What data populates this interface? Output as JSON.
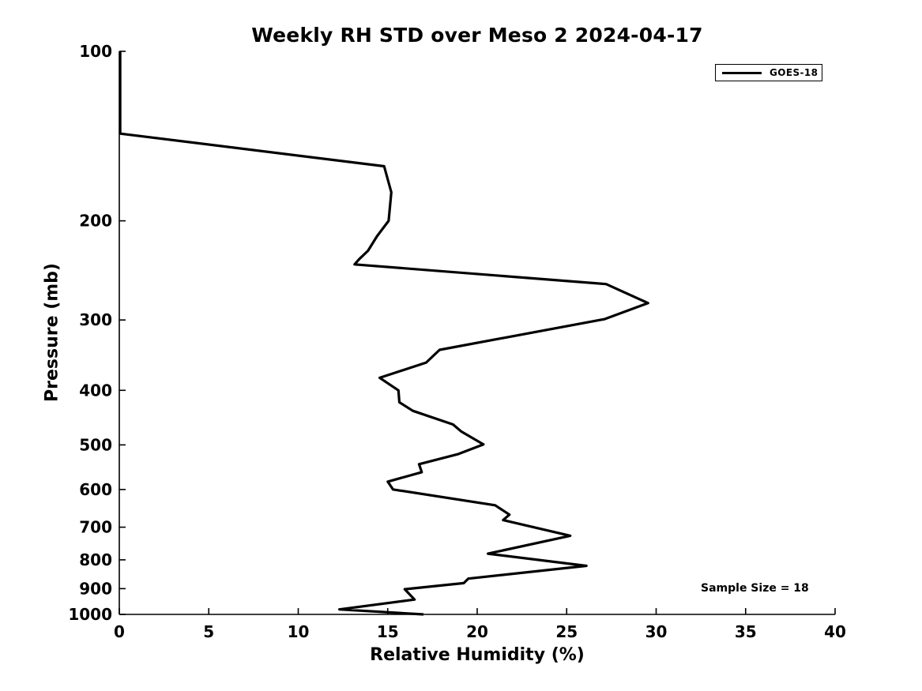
{
  "chart_data": {
    "type": "line",
    "title": "Weekly RH STD over Meso 2 2024-04-17",
    "xlabel": "Relative Humidity (%)",
    "ylabel": "Pressure (mb)",
    "xlim": [
      0,
      40
    ],
    "ylim": [
      100,
      1000
    ],
    "y_scale": "log",
    "y_inverted": true,
    "x_ticks": [
      0,
      5,
      10,
      15,
      20,
      25,
      30,
      35,
      40
    ],
    "y_ticks": [
      100,
      200,
      300,
      400,
      500,
      600,
      700,
      800,
      900,
      1000
    ],
    "grid": false,
    "box": false,
    "annotation": "Sample Size = 18",
    "legend": {
      "position": "top-right",
      "entries": [
        {
          "name": "GOES-18",
          "color": "#000000"
        }
      ]
    },
    "colors": {
      "line": "#000000",
      "axis": "#000000",
      "background": "#ffffff",
      "text": "#000000"
    },
    "line_width": 3.2,
    "series": [
      {
        "name": "GOES-18",
        "points_format": [
          "relative_humidity_pct",
          "pressure_mb"
        ],
        "points": [
          [
            0.05,
            100
          ],
          [
            0.05,
            140
          ],
          [
            14.8,
            160
          ],
          [
            15.2,
            178
          ],
          [
            15.05,
            200
          ],
          [
            14.4,
            213
          ],
          [
            13.9,
            226
          ],
          [
            13.4,
            234
          ],
          [
            13.15,
            239
          ],
          [
            27.2,
            259
          ],
          [
            29.55,
            280
          ],
          [
            27.1,
            299
          ],
          [
            17.9,
            339
          ],
          [
            17.15,
            357
          ],
          [
            14.55,
            380
          ],
          [
            15.6,
            400
          ],
          [
            15.65,
            420
          ],
          [
            16.4,
            435
          ],
          [
            18.65,
            460
          ],
          [
            19.1,
            473
          ],
          [
            20.35,
            499
          ],
          [
            18.95,
            519
          ],
          [
            16.75,
            541
          ],
          [
            16.9,
            559
          ],
          [
            15.0,
            581
          ],
          [
            15.3,
            600
          ],
          [
            21.0,
            640
          ],
          [
            21.8,
            665
          ],
          [
            21.45,
            680
          ],
          [
            25.2,
            725
          ],
          [
            20.6,
            780
          ],
          [
            26.1,
            820
          ],
          [
            19.5,
            864
          ],
          [
            19.25,
            880
          ],
          [
            15.95,
            902
          ],
          [
            16.5,
            941
          ],
          [
            12.3,
            980
          ],
          [
            17.0,
            1000
          ]
        ]
      }
    ]
  }
}
